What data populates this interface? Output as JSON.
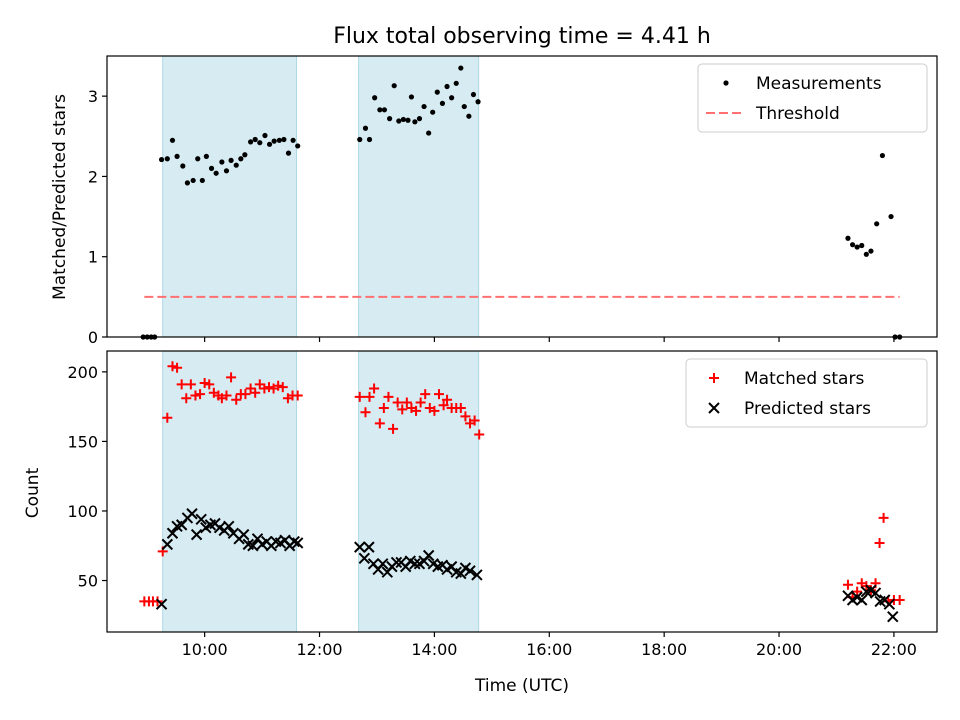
{
  "chart_data": {
    "title": "Flux total observing time = 4.41 h",
    "xlabel": "Time (UTC)",
    "x_ticks": [
      {
        "v": 10,
        "label": "10:00"
      },
      {
        "v": 12,
        "label": "12:00"
      },
      {
        "v": 14,
        "label": "14:00"
      },
      {
        "v": 16,
        "label": "16:00"
      },
      {
        "v": 18,
        "label": "18:00"
      },
      {
        "v": 20,
        "label": "20:00"
      },
      {
        "v": 22,
        "label": "22:00"
      }
    ],
    "xlim": [
      8.3,
      22.75
    ],
    "shaded_intervals": [
      [
        9.27,
        11.6
      ],
      [
        12.68,
        14.77
      ]
    ],
    "shade_color": "#add8e6",
    "panels": [
      {
        "type": "scatter",
        "ylabel": "Matched/Predicted stars",
        "ylim": [
          0,
          3.5
        ],
        "y_ticks": [
          0,
          1,
          2,
          3
        ],
        "legend": {
          "position": "top-right",
          "entries": [
            "Measurements",
            "Threshold"
          ]
        },
        "threshold": {
          "name": "Threshold",
          "value": 0.5,
          "x_range": [
            8.95,
            22.1
          ],
          "color": "#ff7070"
        },
        "series": [
          {
            "name": "Measurements",
            "color": "#000000",
            "points": [
              [
                8.93,
                0.0
              ],
              [
                9.0,
                0.0
              ],
              [
                9.07,
                0.0
              ],
              [
                9.13,
                0.0
              ],
              [
                9.25,
                2.21
              ],
              [
                9.35,
                2.22
              ],
              [
                9.44,
                2.45
              ],
              [
                9.52,
                2.25
              ],
              [
                9.62,
                2.13
              ],
              [
                9.7,
                1.92
              ],
              [
                9.8,
                1.95
              ],
              [
                9.88,
                2.22
              ],
              [
                9.96,
                1.95
              ],
              [
                10.03,
                2.25
              ],
              [
                10.12,
                2.1
              ],
              [
                10.2,
                2.04
              ],
              [
                10.3,
                2.18
              ],
              [
                10.38,
                2.07
              ],
              [
                10.46,
                2.2
              ],
              [
                10.55,
                2.14
              ],
              [
                10.63,
                2.22
              ],
              [
                10.7,
                2.27
              ],
              [
                10.8,
                2.43
              ],
              [
                10.88,
                2.46
              ],
              [
                10.96,
                2.42
              ],
              [
                11.05,
                2.51
              ],
              [
                11.13,
                2.4
              ],
              [
                11.21,
                2.44
              ],
              [
                11.3,
                2.45
              ],
              [
                11.38,
                2.46
              ],
              [
                11.46,
                2.29
              ],
              [
                11.54,
                2.45
              ],
              [
                11.62,
                2.38
              ],
              [
                12.7,
                2.46
              ],
              [
                12.8,
                2.6
              ],
              [
                12.87,
                2.46
              ],
              [
                12.96,
                2.98
              ],
              [
                13.05,
                2.83
              ],
              [
                13.13,
                2.83
              ],
              [
                13.22,
                2.72
              ],
              [
                13.3,
                3.13
              ],
              [
                13.38,
                2.69
              ],
              [
                13.46,
                2.71
              ],
              [
                13.54,
                2.7
              ],
              [
                13.6,
                2.99
              ],
              [
                13.66,
                2.68
              ],
              [
                13.74,
                2.72
              ],
              [
                13.82,
                2.87
              ],
              [
                13.9,
                2.54
              ],
              [
                13.97,
                2.8
              ],
              [
                14.05,
                3.05
              ],
              [
                14.14,
                2.91
              ],
              [
                14.22,
                3.12
              ],
              [
                14.3,
                2.98
              ],
              [
                14.38,
                3.16
              ],
              [
                14.46,
                3.35
              ],
              [
                14.52,
                2.87
              ],
              [
                14.6,
                2.75
              ],
              [
                14.68,
                3.02
              ],
              [
                14.76,
                2.93
              ],
              [
                21.2,
                1.23
              ],
              [
                21.28,
                1.15
              ],
              [
                21.36,
                1.12
              ],
              [
                21.44,
                1.14
              ],
              [
                21.52,
                1.03
              ],
              [
                21.6,
                1.07
              ],
              [
                21.7,
                1.41
              ],
              [
                21.8,
                2.26
              ],
              [
                21.95,
                1.5
              ],
              [
                22.02,
                0.0
              ],
              [
                22.1,
                0.0
              ]
            ]
          }
        ]
      },
      {
        "type": "scatter",
        "ylabel": "Count",
        "ylim": [
          13,
          215
        ],
        "y_ticks": [
          50,
          100,
          150,
          200
        ],
        "legend": {
          "position": "top-right",
          "entries": [
            "Matched stars",
            "Predicted stars"
          ]
        },
        "series": [
          {
            "name": "Matched stars",
            "marker": "plus",
            "color": "#ff0000",
            "points": [
              [
                8.95,
                35
              ],
              [
                9.03,
                35
              ],
              [
                9.1,
                35
              ],
              [
                9.18,
                35
              ],
              [
                9.27,
                71
              ],
              [
                9.35,
                167
              ],
              [
                9.44,
                204
              ],
              [
                9.52,
                203
              ],
              [
                9.6,
                191
              ],
              [
                9.68,
                181
              ],
              [
                9.76,
                191
              ],
              [
                9.84,
                183
              ],
              [
                9.92,
                184
              ],
              [
                10.0,
                192
              ],
              [
                10.08,
                191
              ],
              [
                10.16,
                185
              ],
              [
                10.24,
                183
              ],
              [
                10.3,
                181
              ],
              [
                10.38,
                183
              ],
              [
                10.46,
                196
              ],
              [
                10.55,
                180
              ],
              [
                10.63,
                184
              ],
              [
                10.71,
                184
              ],
              [
                10.8,
                188
              ],
              [
                10.88,
                185
              ],
              [
                10.96,
                191
              ],
              [
                11.04,
                188
              ],
              [
                11.12,
                189
              ],
              [
                11.2,
                188
              ],
              [
                11.28,
                190
              ],
              [
                11.36,
                189
              ],
              [
                11.45,
                181
              ],
              [
                11.53,
                183
              ],
              [
                11.62,
                183
              ],
              [
                12.7,
                182
              ],
              [
                12.8,
                171
              ],
              [
                12.87,
                182
              ],
              [
                12.95,
                188
              ],
              [
                13.05,
                163
              ],
              [
                13.12,
                174
              ],
              [
                13.2,
                182
              ],
              [
                13.28,
                159
              ],
              [
                13.36,
                178
              ],
              [
                13.44,
                173
              ],
              [
                13.52,
                178
              ],
              [
                13.6,
                174
              ],
              [
                13.68,
                172
              ],
              [
                13.76,
                178
              ],
              [
                13.84,
                184
              ],
              [
                13.92,
                174
              ],
              [
                14.0,
                172
              ],
              [
                14.08,
                184
              ],
              [
                14.16,
                176
              ],
              [
                14.22,
                180
              ],
              [
                14.3,
                174
              ],
              [
                14.38,
                174
              ],
              [
                14.46,
                174
              ],
              [
                14.54,
                168
              ],
              [
                14.62,
                163
              ],
              [
                14.7,
                165
              ],
              [
                14.78,
                155
              ],
              [
                21.2,
                47
              ],
              [
                21.28,
                38
              ],
              [
                21.36,
                42
              ],
              [
                21.44,
                48
              ],
              [
                21.52,
                46
              ],
              [
                21.6,
                43
              ],
              [
                21.68,
                48
              ],
              [
                21.75,
                77
              ],
              [
                21.82,
                95
              ],
              [
                21.9,
                35
              ],
              [
                22.0,
                36
              ],
              [
                22.1,
                36
              ]
            ]
          },
          {
            "name": "Predicted stars",
            "marker": "x",
            "color": "#000000",
            "points": [
              [
                9.25,
                33
              ],
              [
                9.35,
                76
              ],
              [
                9.44,
                84
              ],
              [
                9.52,
                89
              ],
              [
                9.6,
                90
              ],
              [
                9.7,
                95
              ],
              [
                9.78,
                98
              ],
              [
                9.86,
                83
              ],
              [
                9.94,
                94
              ],
              [
                10.02,
                88
              ],
              [
                10.1,
                90
              ],
              [
                10.18,
                91
              ],
              [
                10.26,
                88
              ],
              [
                10.34,
                86
              ],
              [
                10.42,
                89
              ],
              [
                10.5,
                84
              ],
              [
                10.6,
                80
              ],
              [
                10.68,
                83
              ],
              [
                10.76,
                76
              ],
              [
                10.84,
                75
              ],
              [
                10.92,
                80
              ],
              [
                11.0,
                76
              ],
              [
                11.08,
                78
              ],
              [
                11.16,
                75
              ],
              [
                11.24,
                78
              ],
              [
                11.32,
                77
              ],
              [
                11.4,
                79
              ],
              [
                11.48,
                75
              ],
              [
                11.56,
                78
              ],
              [
                11.62,
                77
              ],
              [
                12.7,
                74
              ],
              [
                12.78,
                66
              ],
              [
                12.86,
                74
              ],
              [
                12.94,
                62
              ],
              [
                13.02,
                58
              ],
              [
                13.1,
                62
              ],
              [
                13.18,
                56
              ],
              [
                13.26,
                60
              ],
              [
                13.34,
                63
              ],
              [
                13.42,
                63
              ],
              [
                13.5,
                60
              ],
              [
                13.58,
                64
              ],
              [
                13.66,
                62
              ],
              [
                13.74,
                62
              ],
              [
                13.82,
                64
              ],
              [
                13.9,
                68
              ],
              [
                13.98,
                62
              ],
              [
                14.06,
                60
              ],
              [
                14.14,
                61
              ],
              [
                14.22,
                58
              ],
              [
                14.3,
                60
              ],
              [
                14.38,
                56
              ],
              [
                14.46,
                55
              ],
              [
                14.54,
                59
              ],
              [
                14.62,
                57
              ],
              [
                14.74,
                54
              ],
              [
                21.2,
                39
              ],
              [
                21.28,
                36
              ],
              [
                21.36,
                38
              ],
              [
                21.44,
                36
              ],
              [
                21.52,
                42
              ],
              [
                21.6,
                43
              ],
              [
                21.68,
                41
              ],
              [
                21.76,
                35
              ],
              [
                21.84,
                36
              ],
              [
                21.92,
                33
              ],
              [
                21.98,
                24
              ]
            ]
          }
        ]
      }
    ]
  }
}
